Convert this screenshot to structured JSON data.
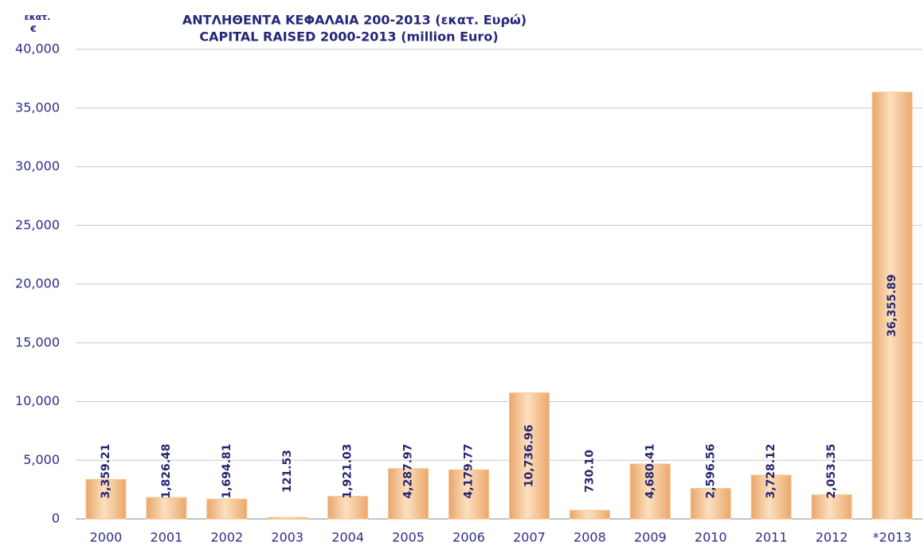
{
  "chart_data": {
    "type": "bar",
    "title": [
      "ΑΝΤΛΗΘΕΝΤΑ ΚΕΦΑΛΑΙΑ 200-2013 (εκατ. Ευρώ)",
      "CAPITAL RAISED 2000-2013 (million Euro)"
    ],
    "ylabel": [
      "εκατ.",
      "€"
    ],
    "categories": [
      "2000",
      "2001",
      "2002",
      "2003",
      "2004",
      "2005",
      "2006",
      "2007",
      "2008",
      "2009",
      "2010",
      "2011",
      "2012",
      "*2013"
    ],
    "values": [
      3359.21,
      1826.48,
      1694.81,
      121.53,
      1921.03,
      4287.97,
      4179.77,
      10736.96,
      730.1,
      4680.41,
      2596.56,
      3728.12,
      2053.35,
      36355.89
    ],
    "value_labels": [
      "3,359.21",
      "1,826.48",
      "1,694.81",
      "121.53",
      "1,921.03",
      "4,287.97",
      "4,179.77",
      "10,736.96",
      "730.10",
      "4,680.41",
      "2,596.56",
      "3,728.12",
      "2,053.35",
      "36,355.89"
    ],
    "color": "#f9c38c",
    "ylim": [
      0,
      40000
    ],
    "yticks": [
      0,
      {
        "value": 5000,
        "label": "5,000"
      },
      {
        "value": 10000,
        "label": "10,000"
      },
      {
        "value": 15000,
        "label": "15,000"
      },
      {
        "value": 20000,
        "label": "20,000"
      },
      {
        "value": 25000,
        "label": "25,000"
      },
      {
        "value": 30000,
        "label": "30,000"
      },
      {
        "value": 35000,
        "label": "35,000"
      },
      {
        "value": 40000,
        "label": "40,000"
      }
    ],
    "grid": true
  }
}
